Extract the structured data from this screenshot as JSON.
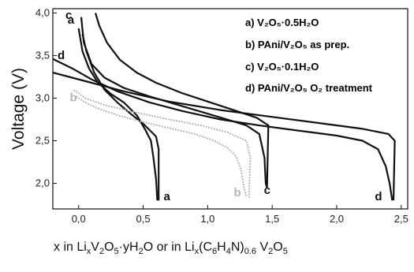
{
  "chart_data": {
    "type": "line",
    "title": "",
    "xlabel": "x in LixV2O5·yH2O or in Lix(C6H4N)0.6 V2O5",
    "ylabel": "Voltage (V)",
    "xlim": [
      -0.2,
      2.55
    ],
    "ylim": [
      1.7,
      4.05
    ],
    "x_ticks": [
      "0,0",
      "0,5",
      "1,0",
      "1,5",
      "2,0",
      "2,5"
    ],
    "y_ticks": [
      "2,0",
      "2,5",
      "3,0",
      "3,5",
      "4,0"
    ],
    "legend_position": "top-right",
    "legend": [
      {
        "key": "a",
        "text": "a) V₂O₅·0.5H₂O",
        "color": "#111111"
      },
      {
        "key": "b",
        "text": "b) PAni/V₂O₅  as prep.",
        "color": "#b5b5b5"
      },
      {
        "key": "c",
        "text": "c) V₂O₅·0.1H₂O",
        "color": "#111111"
      },
      {
        "key": "d",
        "text": "d) PAni/V₂O₅  O₂ treatment",
        "color": "#111111"
      }
    ],
    "series": [
      {
        "key": "a",
        "label": "a",
        "color": "#111111",
        "discharge": [
          [
            0.0,
            3.82
          ],
          [
            0.03,
            3.55
          ],
          [
            0.08,
            3.35
          ],
          [
            0.15,
            3.18
          ],
          [
            0.25,
            3.05
          ],
          [
            0.35,
            2.95
          ],
          [
            0.45,
            2.8
          ],
          [
            0.52,
            2.62
          ],
          [
            0.56,
            2.5
          ],
          [
            0.58,
            2.3
          ],
          [
            0.6,
            2.05
          ],
          [
            0.61,
            1.8
          ]
        ],
        "charge": [
          [
            0.62,
            1.8
          ],
          [
            0.62,
            2.4
          ],
          [
            0.6,
            2.55
          ],
          [
            0.5,
            2.7
          ],
          [
            0.4,
            2.82
          ],
          [
            0.3,
            2.95
          ],
          [
            0.2,
            3.1
          ],
          [
            0.12,
            3.3
          ],
          [
            0.06,
            3.55
          ],
          [
            0.03,
            3.75
          ]
        ]
      },
      {
        "key": "b",
        "label": "b",
        "color": "#b5b5b5",
        "discharge": [
          [
            -0.02,
            3.02
          ],
          [
            0.05,
            2.95
          ],
          [
            0.15,
            2.88
          ],
          [
            0.3,
            2.8
          ],
          [
            0.5,
            2.72
          ],
          [
            0.7,
            2.65
          ],
          [
            0.9,
            2.58
          ],
          [
            1.05,
            2.5
          ],
          [
            1.15,
            2.42
          ],
          [
            1.22,
            2.32
          ],
          [
            1.26,
            2.15
          ],
          [
            1.28,
            1.95
          ],
          [
            1.3,
            1.85
          ]
        ],
        "charge": [
          [
            1.32,
            1.83
          ],
          [
            1.33,
            2.3
          ],
          [
            1.3,
            2.5
          ],
          [
            1.15,
            2.6
          ],
          [
            0.95,
            2.68
          ],
          [
            0.7,
            2.75
          ],
          [
            0.45,
            2.83
          ],
          [
            0.2,
            2.92
          ],
          [
            0.05,
            3.0
          ],
          [
            -0.02,
            3.08
          ],
          [
            -0.05,
            3.1
          ]
        ]
      },
      {
        "key": "c",
        "label": "c",
        "color": "#111111",
        "discharge": [
          [
            0.02,
            3.95
          ],
          [
            0.04,
            3.65
          ],
          [
            0.1,
            3.4
          ],
          [
            0.2,
            3.24
          ],
          [
            0.35,
            3.12
          ],
          [
            0.55,
            3.02
          ],
          [
            0.75,
            2.93
          ],
          [
            0.95,
            2.84
          ],
          [
            1.15,
            2.75
          ],
          [
            1.3,
            2.68
          ],
          [
            1.4,
            2.58
          ],
          [
            1.44,
            2.3
          ],
          [
            1.45,
            2.0
          ],
          [
            1.46,
            1.95
          ]
        ],
        "charge": [
          [
            1.46,
            1.95
          ],
          [
            1.47,
            2.68
          ],
          [
            1.38,
            2.77
          ],
          [
            1.2,
            2.86
          ],
          [
            1.0,
            2.96
          ],
          [
            0.8,
            3.06
          ],
          [
            0.6,
            3.18
          ],
          [
            0.45,
            3.3
          ],
          [
            0.32,
            3.45
          ],
          [
            0.22,
            3.65
          ],
          [
            0.16,
            3.85
          ],
          [
            0.13,
            4.0
          ]
        ]
      },
      {
        "key": "d",
        "label": "d",
        "color": "#111111",
        "discharge": [
          [
            -0.2,
            3.46
          ],
          [
            -0.05,
            3.35
          ],
          [
            0.1,
            3.22
          ],
          [
            0.3,
            3.08
          ],
          [
            0.55,
            2.95
          ],
          [
            0.8,
            2.85
          ],
          [
            1.1,
            2.75
          ],
          [
            1.4,
            2.68
          ],
          [
            1.7,
            2.62
          ],
          [
            2.0,
            2.56
          ],
          [
            2.2,
            2.5
          ],
          [
            2.32,
            2.4
          ],
          [
            2.38,
            2.2
          ],
          [
            2.41,
            2.0
          ],
          [
            2.43,
            1.8
          ]
        ],
        "charge": [
          [
            2.44,
            1.8
          ],
          [
            2.45,
            2.5
          ],
          [
            2.4,
            2.58
          ],
          [
            2.2,
            2.64
          ],
          [
            1.9,
            2.7
          ],
          [
            1.5,
            2.78
          ],
          [
            1.1,
            2.86
          ],
          [
            0.7,
            2.96
          ],
          [
            0.35,
            3.08
          ],
          [
            0.1,
            3.18
          ],
          [
            -0.05,
            3.24
          ],
          [
            -0.2,
            3.3
          ]
        ]
      }
    ]
  }
}
